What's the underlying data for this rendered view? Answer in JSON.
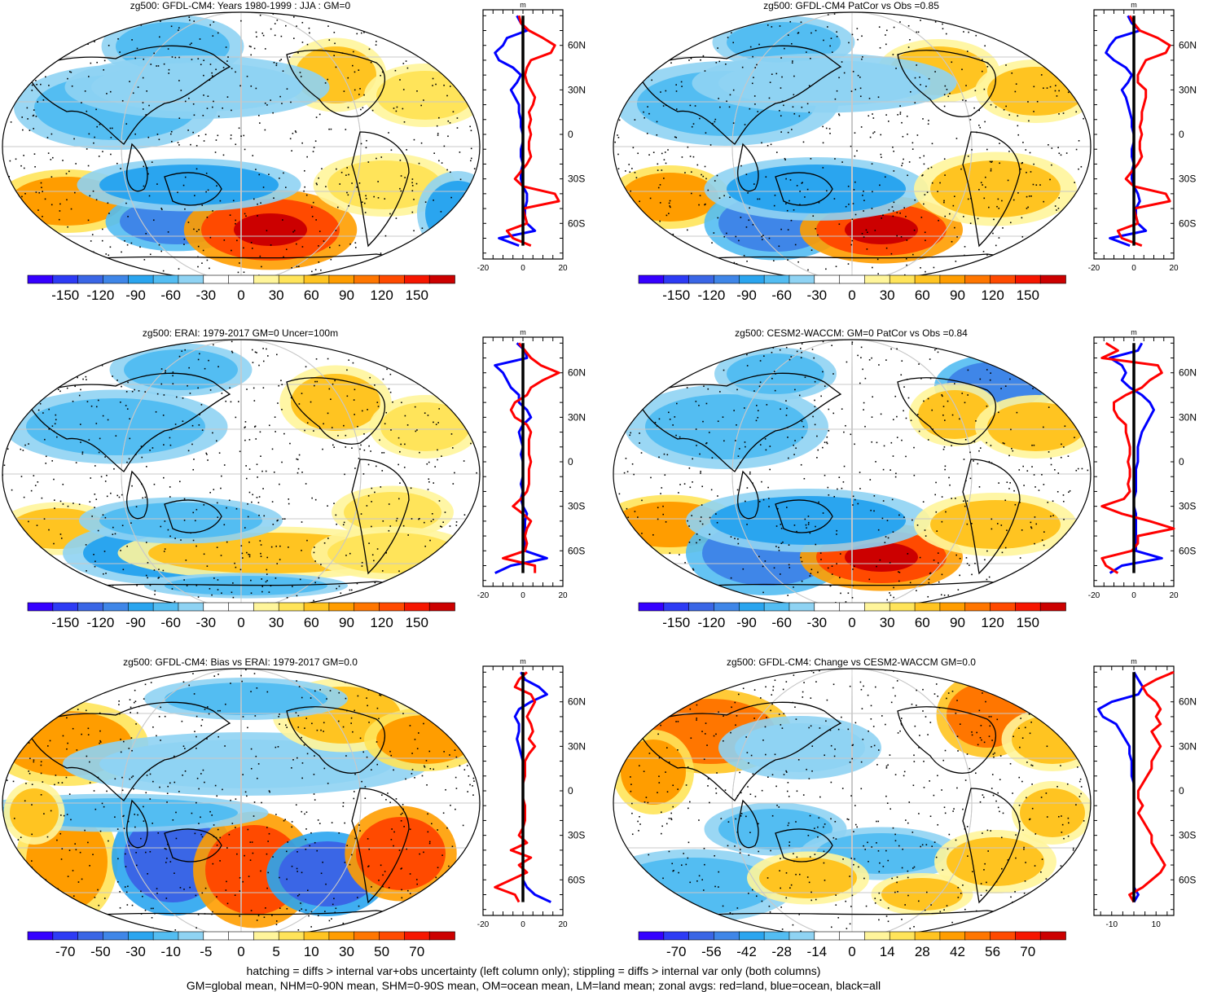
{
  "colors": {
    "div": [
      "#3500ff",
      "#2d3bf5",
      "#3a66e6",
      "#3f86e8",
      "#2aa5ef",
      "#53bdf2",
      "#8fd3f3",
      "#ffffff",
      "#ffffff",
      "#fff59b",
      "#ffe45a",
      "#ffc421",
      "#ff9d00",
      "#ff7600",
      "#ff4a00",
      "#f61600",
      "#cc0000"
    ],
    "land": "#ff0000",
    "ocean": "#0000ff",
    "all": "#000000"
  },
  "panels": [
    {
      "id": "p1",
      "title": "zg500: GFDL-CM4: Years 1980-1999 : JJA : GM=0",
      "chart_data": {
        "type": "heatmap",
        "title": "zg500: GFDL-CM4: Years 1980-1999 : JJA : GM=0",
        "colorbar_ticks": [
          "-150",
          "-120",
          "-90",
          "-60",
          "-30",
          "0",
          "30",
          "60",
          "90",
          "120",
          "150"
        ],
        "zonal": {
          "xlim": [
            -20,
            20
          ],
          "xticks": [
            "-20",
            "0",
            "20"
          ],
          "unit": "m",
          "lat_ticks": [
            "60N",
            "30N",
            "0",
            "30S",
            "60S"
          ],
          "lat": [
            80,
            75,
            70,
            65,
            60,
            55,
            50,
            45,
            40,
            35,
            30,
            25,
            20,
            15,
            10,
            5,
            0,
            -5,
            -10,
            -15,
            -20,
            -25,
            -30,
            -35,
            -40,
            -45,
            -50,
            -55,
            -60,
            -65,
            -70,
            -75
          ],
          "land": [
            -2,
            -1,
            3,
            10,
            16,
            14,
            4,
            2,
            1,
            2,
            4,
            6,
            5,
            3,
            4,
            3,
            4,
            3,
            3,
            4,
            2,
            -1,
            -4,
            0,
            16,
            18,
            0,
            1,
            2,
            -8,
            -5,
            4
          ],
          "ocean": [
            -3,
            -1,
            2,
            -8,
            -10,
            -14,
            -12,
            -5,
            -1,
            -3,
            -6,
            -4,
            -2,
            -2,
            -1,
            -1,
            0,
            0,
            -1,
            -1,
            0,
            -1,
            -1,
            0,
            2,
            2,
            1,
            1,
            2,
            6,
            -12,
            -2
          ],
          "all": [
            0,
            0,
            0,
            0,
            0,
            0,
            0,
            0,
            0,
            0,
            0,
            0,
            0,
            0,
            0,
            0,
            0,
            0,
            0,
            0,
            0,
            0,
            0,
            0,
            0,
            0,
            0,
            0,
            0,
            0,
            0,
            0
          ]
        }
      }
    },
    {
      "id": "p2",
      "title": "zg500: GFDL-CM4 PatCor vs Obs =0.85",
      "chart_data": {
        "type": "heatmap",
        "title": "zg500: GFDL-CM4 PatCor vs Obs =0.85",
        "colorbar_ticks": [
          "-150",
          "-120",
          "-90",
          "-60",
          "-30",
          "0",
          "30",
          "60",
          "90",
          "120",
          "150"
        ],
        "zonal": {
          "xlim": [
            -20,
            20
          ],
          "xticks": [
            "-20",
            "0",
            "20"
          ],
          "unit": "m",
          "lat_ticks": [
            "60N",
            "30N",
            "0",
            "30S",
            "60S"
          ],
          "lat": [
            80,
            75,
            70,
            65,
            60,
            55,
            50,
            45,
            40,
            35,
            30,
            25,
            20,
            15,
            10,
            5,
            0,
            -5,
            -10,
            -15,
            -20,
            -25,
            -30,
            -35,
            -40,
            -45,
            -50,
            -55,
            -60,
            -65,
            -70,
            -75
          ],
          "land": [
            -2,
            0,
            3,
            12,
            18,
            16,
            6,
            4,
            2,
            2,
            6,
            6,
            5,
            4,
            4,
            3,
            4,
            3,
            3,
            4,
            2,
            -1,
            -4,
            0,
            16,
            18,
            0,
            1,
            2,
            -8,
            -6,
            4
          ],
          "ocean": [
            -3,
            -1,
            3,
            -9,
            -12,
            -14,
            -10,
            -4,
            -1,
            -3,
            -6,
            -4,
            -3,
            -2,
            -1,
            -1,
            0,
            0,
            -1,
            -1,
            0,
            -1,
            -1,
            0,
            2,
            3,
            1,
            1,
            2,
            6,
            -12,
            -2
          ],
          "all": [
            0,
            0,
            0,
            0,
            0,
            0,
            0,
            0,
            0,
            0,
            0,
            0,
            0,
            0,
            0,
            0,
            0,
            0,
            0,
            0,
            0,
            0,
            0,
            0,
            0,
            0,
            0,
            0,
            0,
            0,
            0,
            0
          ]
        }
      }
    },
    {
      "id": "p3",
      "title": "zg500: ERAI: 1979-2017 GM=0 Uncer=100m",
      "chart_data": {
        "type": "heatmap",
        "title": "zg500: ERAI: 1979-2017 GM=0 Uncer=100m",
        "colorbar_ticks": [
          "-150",
          "-120",
          "-90",
          "-60",
          "-30",
          "0",
          "30",
          "60",
          "90",
          "120",
          "150"
        ],
        "zonal": {
          "xlim": [
            -20,
            20
          ],
          "xticks": [
            "-20",
            "0",
            "20"
          ],
          "unit": "m",
          "lat_ticks": [
            "60N",
            "30N",
            "0",
            "30S",
            "60S"
          ],
          "lat": [
            80,
            75,
            70,
            65,
            60,
            55,
            50,
            45,
            40,
            35,
            30,
            25,
            20,
            15,
            10,
            5,
            0,
            -5,
            -10,
            -15,
            -20,
            -25,
            -30,
            -35,
            -40,
            -45,
            -50,
            -55,
            -60,
            -65,
            -70,
            -75
          ],
          "land": [
            -2,
            1,
            4,
            9,
            18,
            10,
            4,
            2,
            -4,
            -6,
            -4,
            2,
            4,
            3,
            3,
            3,
            4,
            3,
            3,
            3,
            2,
            -1,
            -5,
            0,
            4,
            2,
            1,
            2,
            1,
            -10,
            6,
            6
          ],
          "ocean": [
            -3,
            1,
            2,
            -14,
            -10,
            -8,
            -6,
            -2,
            -2,
            2,
            4,
            0,
            -2,
            -1,
            0,
            -1,
            0,
            0,
            0,
            -1,
            0,
            -1,
            0,
            2,
            1,
            1,
            1,
            1,
            1,
            12,
            -6,
            -14
          ],
          "all": [
            0,
            0,
            0,
            0,
            0,
            0,
            0,
            0,
            0,
            0,
            0,
            0,
            0,
            0,
            0,
            0,
            0,
            0,
            0,
            0,
            0,
            0,
            0,
            0,
            0,
            0,
            0,
            0,
            0,
            0,
            0,
            0
          ]
        }
      }
    },
    {
      "id": "p4",
      "title": "zg500: CESM2-WACCM: GM=0 PatCor vs Obs =0.84",
      "chart_data": {
        "type": "heatmap",
        "title": "zg500: CESM2-WACCM: GM=0 PatCor vs Obs =0.84",
        "colorbar_ticks": [
          "-150",
          "-120",
          "-90",
          "-60",
          "-30",
          "0",
          "30",
          "60",
          "90",
          "120",
          "150"
        ],
        "zonal": {
          "xlim": [
            -20,
            20
          ],
          "xticks": [
            "-20",
            "0",
            "20"
          ],
          "unit": "m",
          "lat_ticks": [
            "60N",
            "30N",
            "0",
            "30S",
            "60S"
          ],
          "lat": [
            80,
            75,
            70,
            65,
            60,
            55,
            50,
            45,
            40,
            35,
            30,
            25,
            20,
            15,
            10,
            5,
            0,
            -5,
            -10,
            -15,
            -20,
            -25,
            -30,
            -35,
            -40,
            -45,
            -50,
            -55,
            -60,
            -65,
            -70,
            -75
          ],
          "land": [
            -14,
            -8,
            -16,
            12,
            14,
            8,
            4,
            -4,
            -10,
            -10,
            -8,
            -4,
            -4,
            -3,
            -2,
            -2,
            -3,
            -2,
            -2,
            -3,
            -2,
            -5,
            -16,
            -6,
            8,
            20,
            2,
            2,
            -1,
            -16,
            -14,
            -8
          ],
          "ocean": [
            4,
            2,
            -12,
            -6,
            -4,
            -6,
            -2,
            4,
            8,
            10,
            8,
            6,
            4,
            3,
            2,
            2,
            2,
            1,
            1,
            1,
            1,
            0,
            0,
            1,
            1,
            1,
            1,
            1,
            1,
            14,
            -6,
            -12
          ],
          "all": [
            0,
            0,
            0,
            0,
            0,
            0,
            0,
            0,
            0,
            0,
            0,
            0,
            0,
            0,
            0,
            0,
            0,
            0,
            0,
            0,
            0,
            0,
            0,
            0,
            0,
            0,
            0,
            0,
            0,
            0,
            0,
            0
          ]
        }
      }
    },
    {
      "id": "p5",
      "title": "zg500: GFDL-CM4: Bias vs ERAI: 1979-2017 GM=0.0",
      "chart_data": {
        "type": "heatmap",
        "title": "zg500: GFDL-CM4: Bias vs ERAI: 1979-2017 GM=0.0",
        "colorbar_ticks": [
          "-70",
          "-50",
          "-30",
          "-10",
          "-5",
          "0",
          "5",
          "10",
          "30",
          "50",
          "70"
        ],
        "zonal": {
          "xlim": [
            -20,
            20
          ],
          "xticks": [
            "-20",
            "0",
            "20"
          ],
          "unit": "m",
          "lat_ticks": [
            "60N",
            "30N",
            "0",
            "30S",
            "60S"
          ],
          "lat": [
            80,
            75,
            70,
            65,
            60,
            55,
            50,
            45,
            40,
            35,
            30,
            25,
            20,
            15,
            10,
            5,
            0,
            -5,
            -10,
            -15,
            -20,
            -25,
            -30,
            -35,
            -40,
            -45,
            -50,
            -55,
            -60,
            -65,
            -70,
            -75
          ],
          "land": [
            2,
            -2,
            -4,
            4,
            6,
            4,
            2,
            4,
            5,
            3,
            6,
            3,
            1,
            1,
            1,
            0,
            0,
            0,
            1,
            1,
            1,
            0,
            -2,
            2,
            -6,
            4,
            -2,
            2,
            -6,
            -14,
            -4,
            -2
          ],
          "ocean": [
            -1,
            1,
            8,
            12,
            4,
            -2,
            -4,
            -2,
            -2,
            -3,
            -2,
            -1,
            0,
            0,
            0,
            0,
            0,
            0,
            0,
            0,
            0,
            0,
            0,
            0,
            0,
            0,
            0,
            0,
            0,
            2,
            6,
            14
          ],
          "all": [
            0,
            0,
            0,
            0,
            0,
            0,
            0,
            0,
            0,
            0,
            0,
            0,
            0,
            0,
            0,
            0,
            0,
            0,
            0,
            0,
            0,
            0,
            0,
            0,
            0,
            0,
            0,
            0,
            0,
            0,
            0,
            0
          ]
        }
      }
    },
    {
      "id": "p6",
      "title": "zg500: GFDL-CM4: Change vs CESM2-WACCM GM=0.0",
      "chart_data": {
        "type": "heatmap",
        "title": "zg500: GFDL-CM4: Change vs CESM2-WACCM GM=0.0",
        "colorbar_ticks": [
          "-70",
          "-56",
          "-42",
          "-28",
          "-14",
          "0",
          "14",
          "28",
          "42",
          "56",
          "70"
        ],
        "zonal": {
          "xlim": [
            -18,
            18
          ],
          "xticks": [
            "-10",
            "10"
          ],
          "unit": "m",
          "lat_ticks": [
            "60N",
            "30N",
            "0",
            "30S",
            "60S"
          ],
          "lat": [
            80,
            75,
            70,
            65,
            60,
            55,
            50,
            45,
            40,
            35,
            30,
            25,
            20,
            15,
            10,
            5,
            0,
            -5,
            -10,
            -15,
            -20,
            -25,
            -30,
            -35,
            -40,
            -45,
            -50,
            -55,
            -60,
            -65,
            -70,
            -75
          ],
          "land": [
            18,
            10,
            4,
            6,
            10,
            12,
            10,
            12,
            8,
            10,
            12,
            10,
            8,
            8,
            6,
            4,
            2,
            2,
            4,
            2,
            4,
            6,
            8,
            8,
            10,
            12,
            14,
            12,
            8,
            4,
            -2,
            0
          ],
          "ocean": [
            0,
            2,
            4,
            2,
            -10,
            -16,
            -14,
            -8,
            -6,
            -4,
            -2,
            -2,
            -1,
            -1,
            -1,
            0,
            0,
            0,
            0,
            0,
            0,
            0,
            0,
            0,
            0,
            0,
            0,
            0,
            0,
            0,
            2,
            0
          ],
          "all": [
            0,
            0,
            0,
            0,
            0,
            0,
            0,
            0,
            0,
            0,
            0,
            0,
            0,
            0,
            0,
            0,
            0,
            0,
            0,
            0,
            0,
            0,
            0,
            0,
            0,
            0,
            0,
            0,
            0,
            0,
            0,
            0
          ]
        }
      }
    }
  ],
  "footnote": {
    "line1": "hatching = diffs > internal var+obs uncertainty (left column only); stippling = diffs > internal var only (both columns)",
    "line2": "GM=global mean, NHM=0-90N mean, SHM=0-90S mean, OM=ocean mean, LM=land mean; zonal avgs: red=land, blue=ocean, black=all"
  }
}
